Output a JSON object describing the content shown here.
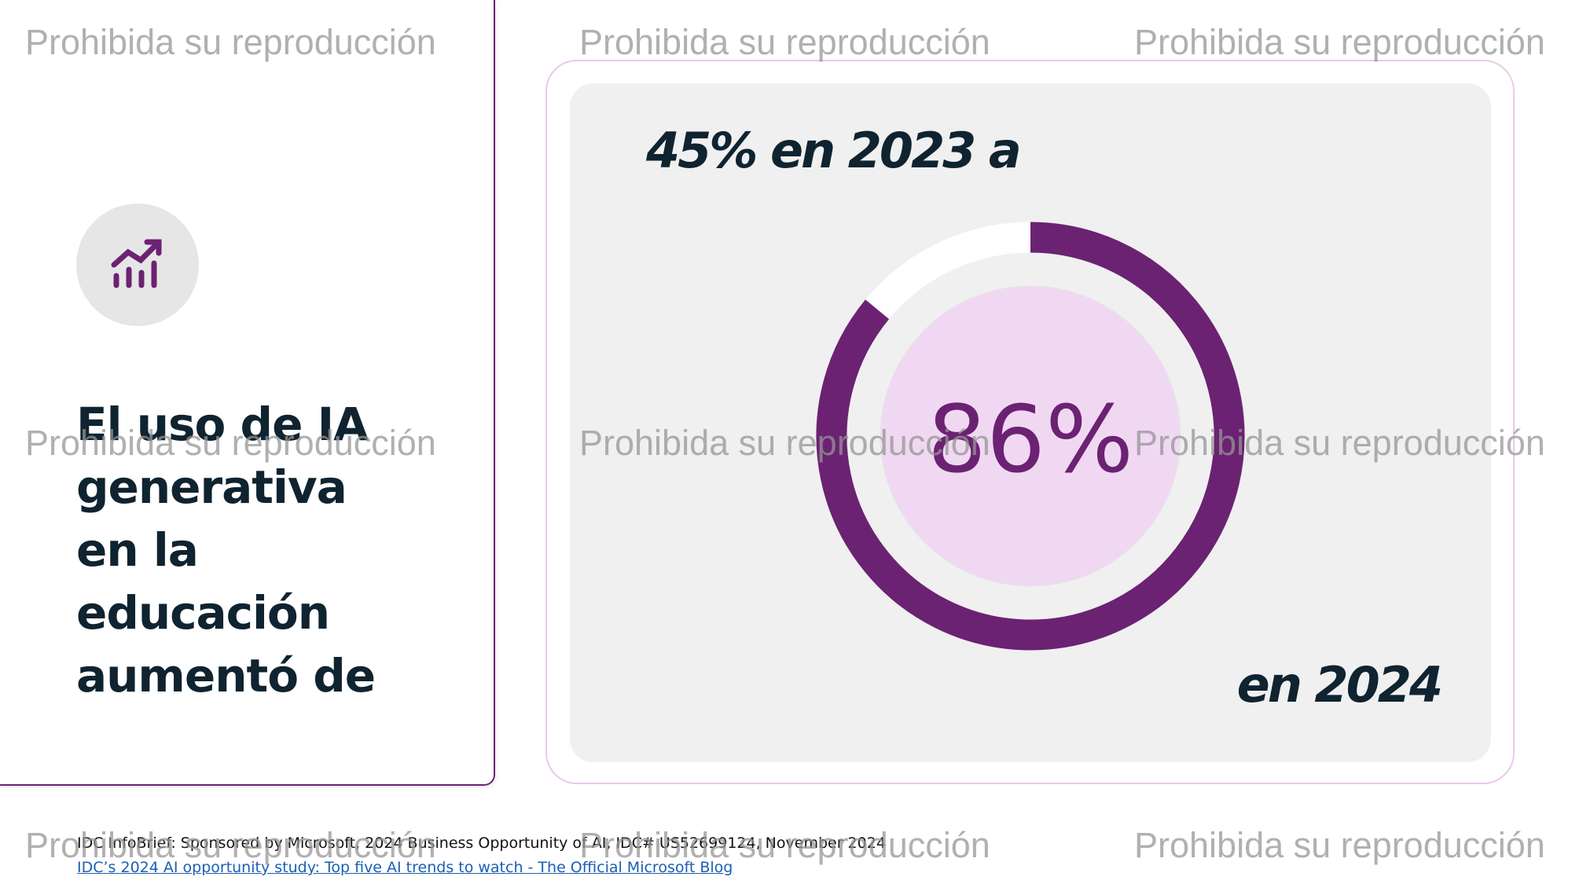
{
  "sidebar": {
    "title": "El uso de IA generativa en la educación aumentó de"
  },
  "chart_data": {
    "type": "donut",
    "top_label": "45% en 2023 a",
    "bottom_label": "en 2024",
    "values": [
      86
    ],
    "value_labels": [
      "86%"
    ],
    "ylim": [
      0,
      100
    ],
    "color": "#6b2272"
  },
  "footer": {
    "source": "IDC InfoBrief: Sponsored by Microsoft, 2024 Business Opportunity of AI, IDC# US52699124, November 2024",
    "link": "IDC’s 2024 AI opportunity study: Top five AI trends to watch - The Official Microsoft Blog"
  },
  "watermark": "Prohibida su reproducción"
}
